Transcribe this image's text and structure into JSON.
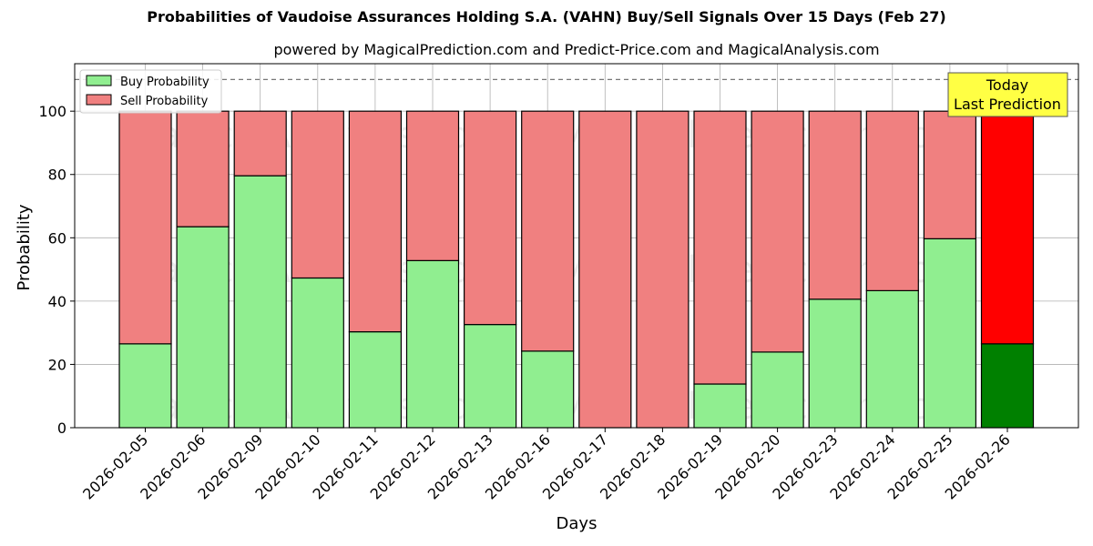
{
  "chart_data": {
    "type": "bar",
    "stacked": true,
    "title": "Probabilities of Vaudoise Assurances Holding S.A. (VAHN) Buy/Sell Signals Over 15 Days (Feb 27)",
    "subtitle": "powered by MagicalPrediction.com and Predict-Price.com and MagicalAnalysis.com",
    "xlabel": "Days",
    "ylabel": "Probability",
    "ylim": [
      0,
      115
    ],
    "yticks": [
      0,
      20,
      40,
      60,
      80,
      100
    ],
    "reference_line": 110,
    "grid": true,
    "legend_position": "top-left",
    "categories": [
      "2026-02-05",
      "2026-02-06",
      "2026-02-09",
      "2026-02-10",
      "2026-02-11",
      "2026-02-12",
      "2026-02-13",
      "2026-02-16",
      "2026-02-17",
      "2026-02-18",
      "2026-02-19",
      "2026-02-20",
      "2026-02-23",
      "2026-02-24",
      "2026-02-25",
      "2026-02-26"
    ],
    "series": [
      {
        "name": "Buy Probability",
        "color": "#90ee90",
        "highlight_color": "#008000",
        "values": [
          26.5,
          63.5,
          79.6,
          47.3,
          30.3,
          52.8,
          32.6,
          24.2,
          0,
          0,
          13.8,
          23.9,
          40.6,
          43.3,
          59.7,
          26.5
        ]
      },
      {
        "name": "Sell Probability",
        "color": "#f08080",
        "highlight_color": "#ff0000",
        "values": [
          73.5,
          36.5,
          20.4,
          52.7,
          69.7,
          47.2,
          67.4,
          75.8,
          100,
          100,
          86.2,
          76.1,
          59.4,
          56.7,
          40.3,
          73.5
        ]
      }
    ],
    "highlight_index": 15,
    "annotation": {
      "lines": [
        "Today",
        "Last Prediction"
      ],
      "color": "#ffff44"
    },
    "watermarks": [
      "MagicalAnalysis.com",
      "MagicalPrediction.com"
    ]
  }
}
